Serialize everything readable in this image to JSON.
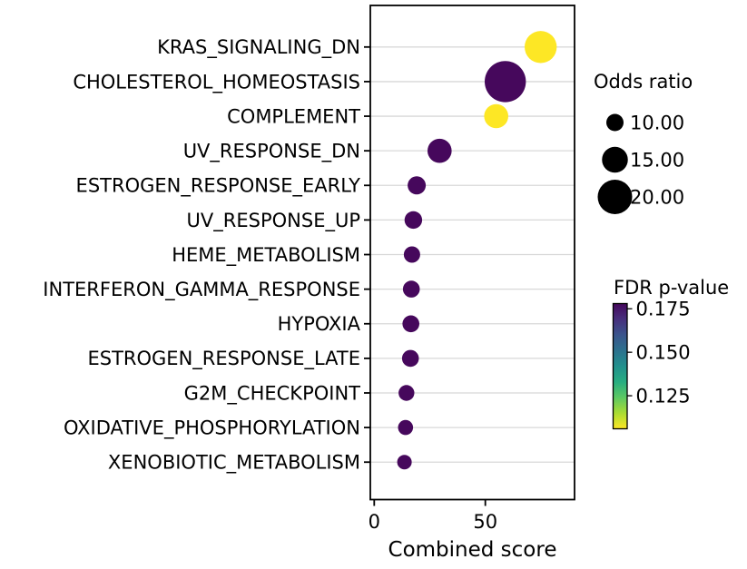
{
  "chart_data": {
    "type": "scatter",
    "title": "",
    "xlabel": "Combined score",
    "ylabel": "",
    "x_ticks": [
      0,
      50
    ],
    "xlim": [
      -1.8,
      90.2
    ],
    "grid": true,
    "size_encoding": "Odds ratio",
    "color_encoding": "FDR p-value",
    "rows": [
      {
        "label": "KRAS_SIGNALING_DN",
        "combined_score": 74.9,
        "odds_ratio": 18.6,
        "fdr": 0.107,
        "color": "#fde725"
      },
      {
        "label": "CHOLESTEROL_HOMEOSTASIS",
        "combined_score": 59.0,
        "odds_ratio": 23.9,
        "fdr": 0.178,
        "color": "#46085c"
      },
      {
        "label": "COMPLEMENT",
        "combined_score": 54.9,
        "odds_ratio": 14.0,
        "fdr": 0.107,
        "color": "#fde725"
      },
      {
        "label": "UV_RESPONSE_DN",
        "combined_score": 29.4,
        "odds_ratio": 14.0,
        "fdr": 0.178,
        "color": "#46085c"
      },
      {
        "label": "ESTROGEN_RESPONSE_EARLY",
        "combined_score": 19.1,
        "odds_ratio": 10.5,
        "fdr": 0.178,
        "color": "#46085c"
      },
      {
        "label": "UV_RESPONSE_UP",
        "combined_score": 17.6,
        "odds_ratio": 10.2,
        "fdr": 0.178,
        "color": "#46085c"
      },
      {
        "label": "HEME_METABOLISM",
        "combined_score": 17.0,
        "odds_ratio": 9.5,
        "fdr": 0.178,
        "color": "#46085c"
      },
      {
        "label": "INTERFERON_GAMMA_RESPONSE",
        "combined_score": 16.7,
        "odds_ratio": 9.8,
        "fdr": 0.178,
        "color": "#46085c"
      },
      {
        "label": "HYPOXIA",
        "combined_score": 16.5,
        "odds_ratio": 9.8,
        "fdr": 0.178,
        "color": "#46085c"
      },
      {
        "label": "ESTROGEN_RESPONSE_LATE",
        "combined_score": 16.3,
        "odds_ratio": 9.8,
        "fdr": 0.178,
        "color": "#46085c"
      },
      {
        "label": "G2M_CHECKPOINT",
        "combined_score": 14.5,
        "odds_ratio": 9.2,
        "fdr": 0.178,
        "color": "#46085c"
      },
      {
        "label": "OXIDATIVE_PHOSPHORYLATION",
        "combined_score": 14.1,
        "odds_ratio": 8.7,
        "fdr": 0.178,
        "color": "#46085c"
      },
      {
        "label": "XENOBIOTIC_METABOLISM",
        "combined_score": 13.6,
        "odds_ratio": 8.4,
        "fdr": 0.178,
        "color": "#46085c"
      }
    ],
    "size_legend": {
      "title": "Odds ratio",
      "circle_color": "#000000",
      "entries": [
        {
          "label": "10.00",
          "value": 10
        },
        {
          "label": "15.00",
          "value": 15
        },
        {
          "label": "20.00",
          "value": 20
        }
      ]
    },
    "colorbar": {
      "title": "FDR p-value",
      "vmin": 0.106,
      "vmax": 0.178,
      "ticks": [
        {
          "label": "0.175",
          "value": 0.175
        },
        {
          "label": "0.150",
          "value": 0.15
        },
        {
          "label": "0.125",
          "value": 0.125
        }
      ],
      "gradient_top_to_bottom": [
        "#46085c",
        "#472f7d",
        "#3a548c",
        "#2c718e",
        "#21908d",
        "#27ad81",
        "#5cc863",
        "#aadc32",
        "#fde725"
      ]
    },
    "colors": {
      "grid": "#d8d8d8",
      "spine": "#000000",
      "text": "#000000",
      "background": "#ffffff"
    }
  }
}
